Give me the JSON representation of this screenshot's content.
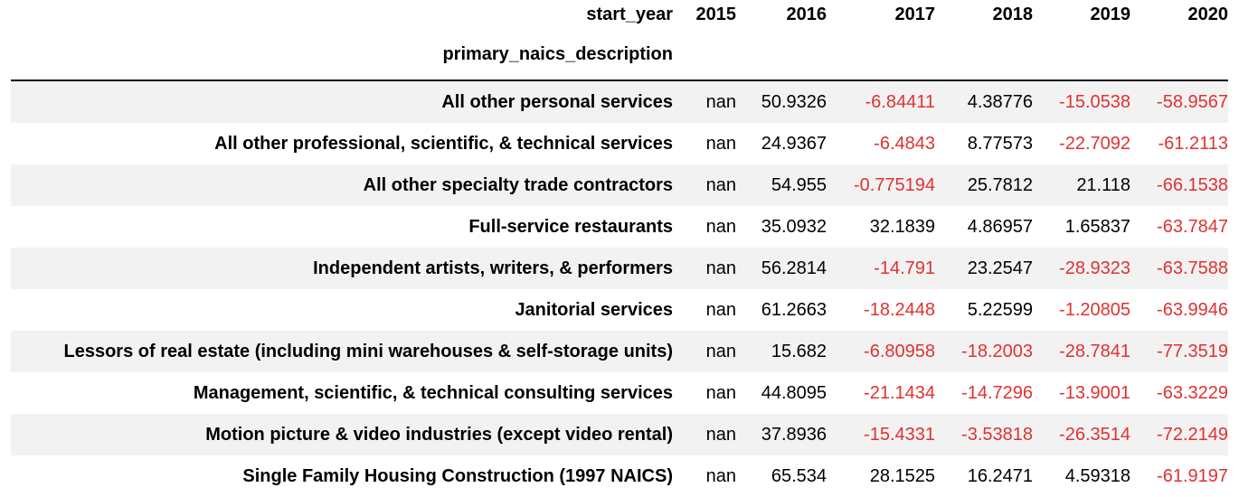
{
  "table": {
    "columns_name": "start_year",
    "index_name": "primary_naics_description",
    "columns": [
      "2015",
      "2016",
      "2017",
      "2018",
      "2019",
      "2020"
    ],
    "negative_color": "#e03131",
    "stripe_color": "#f2f2f2",
    "rows": [
      {
        "label": "All other personal services",
        "values": [
          "nan",
          "50.9326",
          "-6.84411",
          "4.38776",
          "-15.0538",
          "-58.9567"
        ]
      },
      {
        "label": "All other professional, scientific, & technical services",
        "values": [
          "nan",
          "24.9367",
          "-6.4843",
          "8.77573",
          "-22.7092",
          "-61.2113"
        ]
      },
      {
        "label": "All other specialty trade contractors",
        "values": [
          "nan",
          "54.955",
          "-0.775194",
          "25.7812",
          "21.118",
          "-66.1538"
        ]
      },
      {
        "label": "Full-service restaurants",
        "values": [
          "nan",
          "35.0932",
          "32.1839",
          "4.86957",
          "1.65837",
          "-63.7847"
        ]
      },
      {
        "label": "Independent artists, writers, & performers",
        "values": [
          "nan",
          "56.2814",
          "-14.791",
          "23.2547",
          "-28.9323",
          "-63.7588"
        ]
      },
      {
        "label": "Janitorial services",
        "values": [
          "nan",
          "61.2663",
          "-18.2448",
          "5.22599",
          "-1.20805",
          "-63.9946"
        ]
      },
      {
        "label": "Lessors of real estate (including mini warehouses & self-storage units)",
        "values": [
          "nan",
          "15.682",
          "-6.80958",
          "-18.2003",
          "-28.7841",
          "-77.3519"
        ]
      },
      {
        "label": "Management, scientific, & technical consulting services",
        "values": [
          "nan",
          "44.8095",
          "-21.1434",
          "-14.7296",
          "-13.9001",
          "-63.3229"
        ]
      },
      {
        "label": "Motion picture & video industries (except video rental)",
        "values": [
          "nan",
          "37.8936",
          "-15.4331",
          "-3.53818",
          "-26.3514",
          "-72.2149"
        ]
      },
      {
        "label": "Single Family Housing Construction (1997 NAICS)",
        "values": [
          "nan",
          "65.534",
          "28.1525",
          "16.2471",
          "4.59318",
          "-61.9197"
        ]
      }
    ]
  }
}
